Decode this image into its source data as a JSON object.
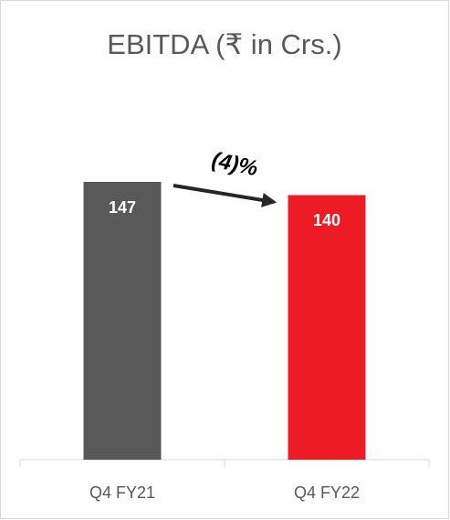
{
  "chart_data": {
    "type": "bar",
    "title": "EBITDA (₹ in Crs.)",
    "categories": [
      "Q4 FY21",
      "Q4 FY22"
    ],
    "values": [
      147,
      140
    ],
    "colors": [
      "#595959",
      "#ed1c24"
    ],
    "annotation": "(4)%"
  }
}
